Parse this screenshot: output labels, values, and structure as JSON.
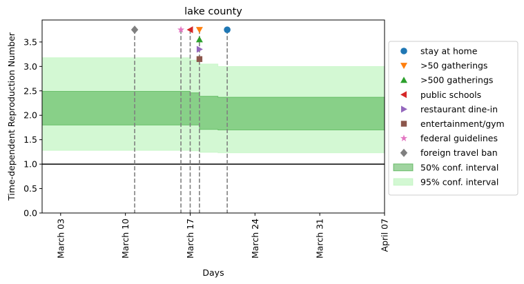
{
  "chart_data": {
    "type": "line",
    "title": "lake county",
    "xlabel": "Days",
    "ylabel": "Time-dependent Reproduction Number",
    "xlim": [
      "2020-03-01",
      "2020-04-07"
    ],
    "ylim": [
      0,
      3.95
    ],
    "x_ticks": [
      {
        "date": "2020-03-03",
        "label": "March 03"
      },
      {
        "date": "2020-03-10",
        "label": "March 10"
      },
      {
        "date": "2020-03-17",
        "label": "March 17"
      },
      {
        "date": "2020-03-24",
        "label": "March 24"
      },
      {
        "date": "2020-03-31",
        "label": "March 31"
      },
      {
        "date": "2020-04-07",
        "label": "April 07"
      }
    ],
    "y_ticks": [
      {
        "value": 0,
        "label": "0.0"
      },
      {
        "value": 0.5,
        "label": "0.5"
      },
      {
        "value": 1.0,
        "label": "1.0"
      },
      {
        "value": 1.5,
        "label": "1.5"
      },
      {
        "value": 2.0,
        "label": "2.0"
      },
      {
        "value": 2.5,
        "label": "2.5"
      },
      {
        "value": 3.0,
        "label": "3.0"
      },
      {
        "value": 3.5,
        "label": "3.5"
      }
    ],
    "reference_line": {
      "y": 1.0,
      "color": "#000000"
    },
    "intervals": [
      {
        "name": "95% conf. interval",
        "color": "#90ee90",
        "segments": [
          {
            "x_start": "2020-03-01",
            "x_end": "2020-03-17",
            "low": 1.28,
            "high": 3.18
          },
          {
            "x_start": "2020-03-17",
            "x_end": "2020-03-18",
            "low": 1.27,
            "high": 3.13
          },
          {
            "x_start": "2020-03-18",
            "x_end": "2020-03-20",
            "low": 1.24,
            "high": 3.05
          },
          {
            "x_start": "2020-03-20",
            "x_end": "2020-04-07",
            "low": 1.23,
            "high": 3.0
          }
        ]
      },
      {
        "name": "50% conf. interval",
        "color": "#2ca02c",
        "segments": [
          {
            "x_start": "2020-03-01",
            "x_end": "2020-03-17",
            "low": 1.8,
            "high": 2.49
          },
          {
            "x_start": "2020-03-17",
            "x_end": "2020-03-18",
            "low": 1.8,
            "high": 2.46
          },
          {
            "x_start": "2020-03-18",
            "x_end": "2020-03-20",
            "low": 1.71,
            "high": 2.39
          },
          {
            "x_start": "2020-03-20",
            "x_end": "2020-04-07",
            "low": 1.7,
            "high": 2.37
          }
        ]
      }
    ],
    "events": [
      {
        "name": "stay at home",
        "date": "2020-03-21",
        "y": 3.75,
        "marker": "circle",
        "color": "#1f77b4"
      },
      {
        "name": ">50 gatherings",
        "date": "2020-03-18",
        "y": 3.75,
        "marker": "triangle-down",
        "color": "#ff7f0e"
      },
      {
        "name": ">500 gatherings",
        "date": "2020-03-18",
        "y": 3.55,
        "marker": "triangle-up",
        "color": "#2ca02c"
      },
      {
        "name": "public schools",
        "date": "2020-03-17",
        "y": 3.75,
        "marker": "triangle-left",
        "color": "#d62728"
      },
      {
        "name": "restaurant dine-in",
        "date": "2020-03-18",
        "y": 3.35,
        "marker": "triangle-right",
        "color": "#9467bd"
      },
      {
        "name": "entertainment/gym",
        "date": "2020-03-18",
        "y": 3.15,
        "marker": "square",
        "color": "#8c564b"
      },
      {
        "name": "federal guidelines",
        "date": "2020-03-16",
        "y": 3.75,
        "marker": "star",
        "color": "#e377c2"
      },
      {
        "name": "foreign travel ban",
        "date": "2020-03-11",
        "y": 3.75,
        "marker": "diamond",
        "color": "#7f7f7f"
      }
    ],
    "vlines": [
      "2020-03-11",
      "2020-03-16",
      "2020-03-17",
      "2020-03-18",
      "2020-03-21"
    ],
    "vline_color": "#7f7f7f",
    "legend": {
      "placement": "center-right-outside",
      "entries": [
        {
          "label": "stay at home",
          "kind": "marker",
          "ref": "stay at home"
        },
        {
          "label": ">50 gatherings",
          "kind": "marker",
          "ref": ">50 gatherings"
        },
        {
          "label": ">500 gatherings",
          "kind": "marker",
          "ref": ">500 gatherings"
        },
        {
          "label": "public schools",
          "kind": "marker",
          "ref": "public schools"
        },
        {
          "label": "restaurant dine-in",
          "kind": "marker",
          "ref": "restaurant dine-in"
        },
        {
          "label": "entertainment/gym",
          "kind": "marker",
          "ref": "entertainment/gym"
        },
        {
          "label": "federal guidelines",
          "kind": "marker",
          "ref": "federal guidelines"
        },
        {
          "label": "foreign travel ban",
          "kind": "marker",
          "ref": "foreign travel ban"
        },
        {
          "label": "50% conf. interval",
          "kind": "patch",
          "ref": "50% conf. interval"
        },
        {
          "label": "95% conf. interval",
          "kind": "patch",
          "ref": "95% conf. interval"
        }
      ]
    },
    "grid": false
  }
}
